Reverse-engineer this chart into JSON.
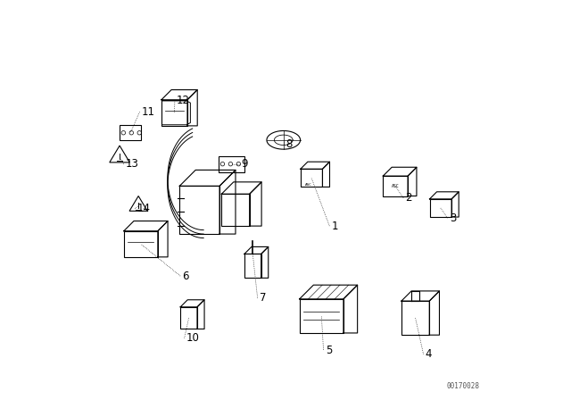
{
  "bg_color": "#ffffff",
  "line_color": "#000000",
  "label_color": "#000000",
  "watermark": "00170028",
  "figsize": [
    6.4,
    4.48
  ],
  "dpi": 100,
  "label_positions": {
    "1": [
      0.615,
      0.435,
      0.565,
      0.555
    ],
    "2": [
      0.8,
      0.505,
      0.775,
      0.535
    ],
    "3": [
      0.91,
      0.455,
      0.888,
      0.48
    ],
    "4": [
      0.85,
      0.115,
      0.825,
      0.205
    ],
    "5": [
      0.6,
      0.125,
      0.59,
      0.21
    ],
    "6": [
      0.242,
      0.31,
      0.138,
      0.39
    ],
    "7": [
      0.435,
      0.255,
      0.418,
      0.365
    ],
    "8": [
      0.5,
      0.64,
      0.495,
      0.648
    ],
    "9": [
      0.39,
      0.59,
      0.365,
      0.59
    ],
    "10": [
      0.252,
      0.155,
      0.258,
      0.205
    ],
    "11": [
      0.14,
      0.72,
      0.112,
      0.668
    ],
    "12": [
      0.228,
      0.75,
      0.222,
      0.718
    ],
    "13": [
      0.1,
      0.59,
      0.085,
      0.608
    ],
    "14": [
      0.128,
      0.478,
      0.132,
      0.485
    ]
  }
}
